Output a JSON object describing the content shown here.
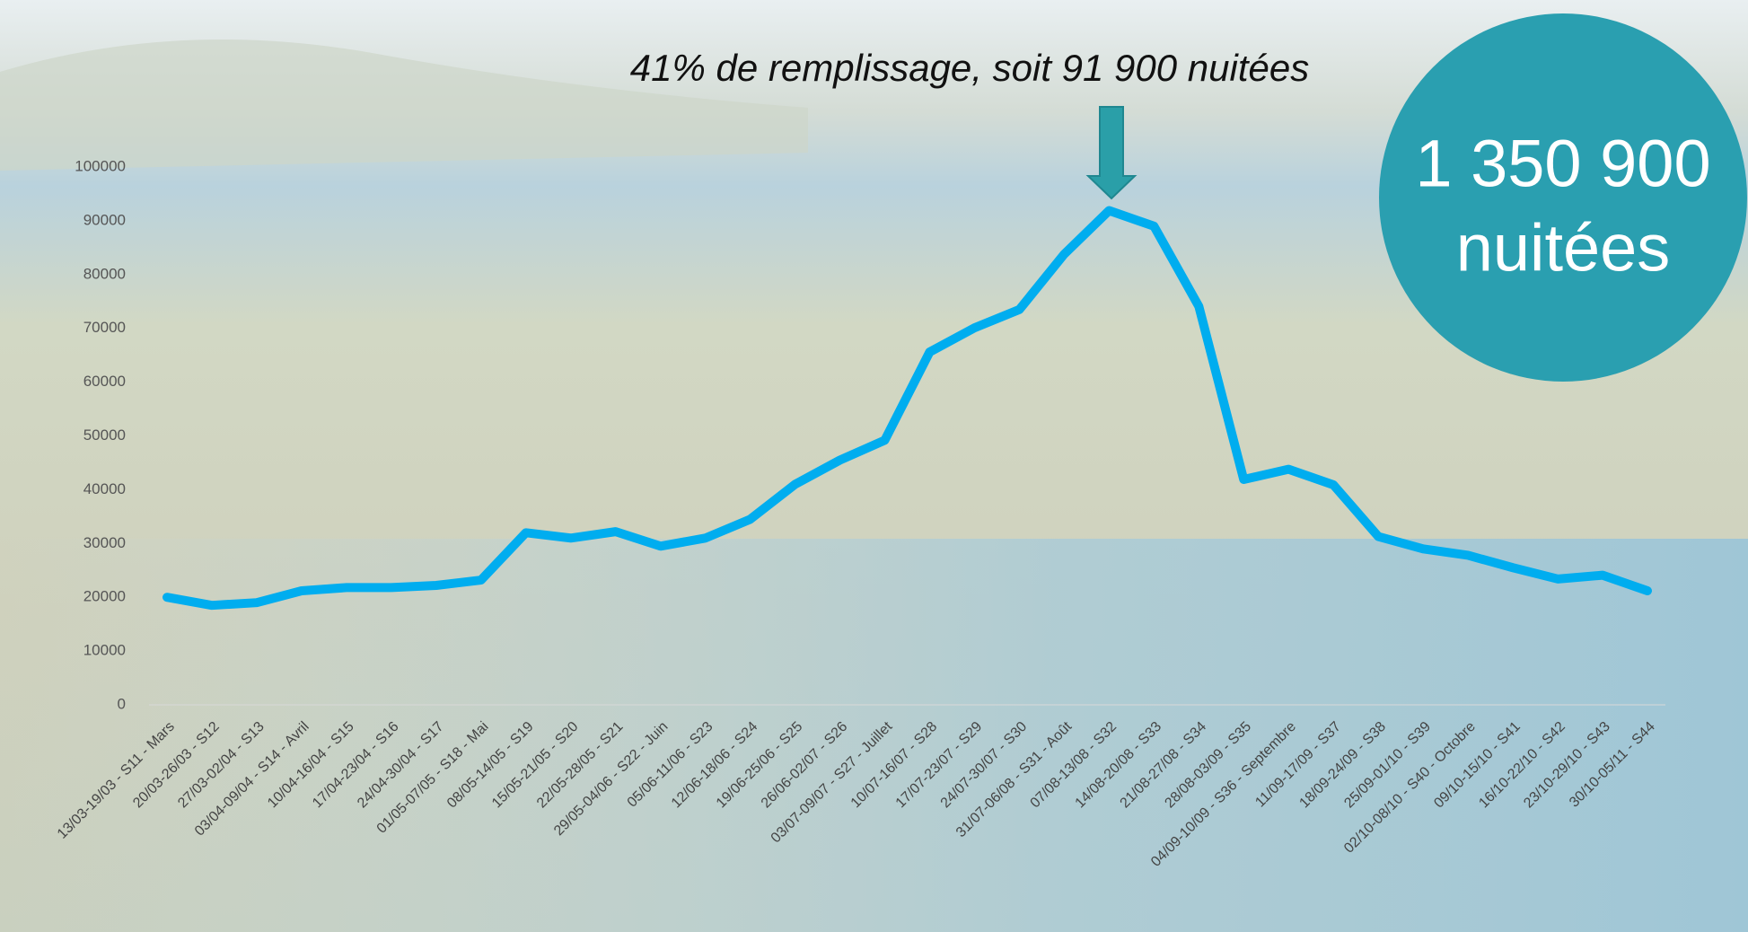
{
  "chart_data": {
    "type": "line",
    "annotation": "41% de remplissage, soit 91 900 nuitées",
    "callout": [
      "1 350 900",
      "nuitées"
    ],
    "categories": [
      "13/03-19/03 - S11 - Mars",
      "20/03-26/03 - S12",
      "27/03-02/04 - S13",
      "03/04-09/04 - S14 - Avril",
      "10/04-16/04 - S15",
      "17/04-23/04 - S16",
      "24/04-30/04 - S17",
      "01/05-07/05 - S18 - Mai",
      "08/05-14/05 - S19",
      "15/05-21/05 - S20",
      "22/05-28/05 - S21",
      "29/05-04/06 - S22 - Juin",
      "05/06-11/06 - S23",
      "12/06-18/06 - S24",
      "19/06-25/06 - S25",
      "26/06-02/07 - S26",
      "03/07-09/07 - S27 - Juillet",
      "10/07-16/07 - S28",
      "17/07-23/07 - S29",
      "24/07-30/07 - S30",
      "31/07-06/08 - S31 - Août",
      "07/08-13/08 - S32",
      "14/08-20/08 - S33",
      "21/08-27/08 - S34",
      "28/08-03/09 - S35",
      "04/09-10/09 - S36 - Septembre",
      "11/09-17/09 - S37",
      "18/09-24/09 - S38",
      "25/09-01/10 - S39",
      "02/10-08/10 - S40 - Octobre",
      "09/10-15/10 - S41",
      "16/10-22/10 - S42",
      "23/10-29/10 - S43",
      "30/10-05/11 - S44"
    ],
    "values": [
      20000,
      18500,
      19000,
      21200,
      21800,
      21800,
      22200,
      23200,
      32000,
      31000,
      32200,
      29500,
      31000,
      34500,
      41000,
      45500,
      49200,
      65600,
      70100,
      73500,
      83800,
      91900,
      89000,
      74100,
      41900,
      43800,
      40900,
      31300,
      29000,
      27800,
      25500,
      23400,
      24100,
      21200
    ],
    "color": "#00adef",
    "ylim": [
      0,
      100000
    ],
    "yticks": [
      0,
      10000,
      20000,
      30000,
      40000,
      50000,
      60000,
      70000,
      80000,
      90000,
      100000
    ],
    "grid": false
  }
}
